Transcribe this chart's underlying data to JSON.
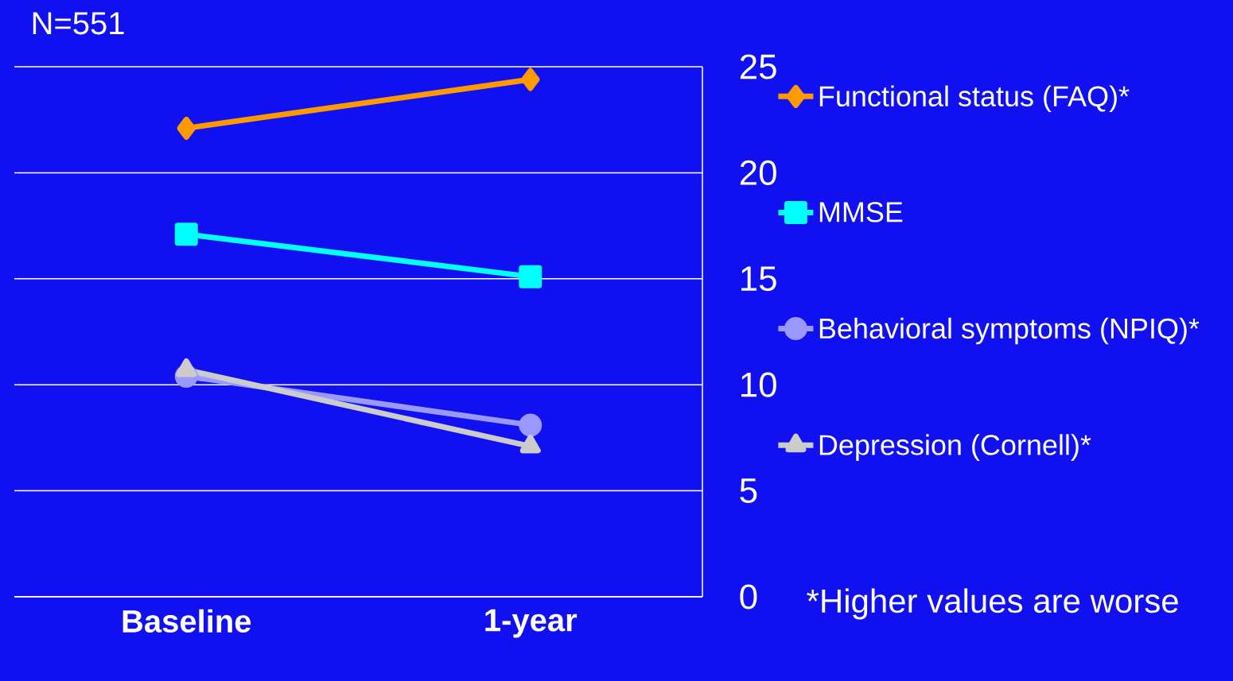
{
  "chart_data": {
    "type": "line",
    "categories": [
      "Baseline",
      "1-year"
    ],
    "series": [
      {
        "name": "Functional status (FAQ)*",
        "color": "#ff9900",
        "marker": "diamond",
        "values": [
          22.1,
          24.4
        ]
      },
      {
        "name": "MMSE",
        "color": "#00ffff",
        "marker": "square",
        "values": [
          17.1,
          15.1
        ]
      },
      {
        "name": "Behavioral symptoms (NPIQ)*",
        "color": "#9999ff",
        "marker": "circle",
        "values": [
          10.4,
          8.1
        ]
      },
      {
        "name": "Depression (Cornell)*",
        "color": "#cccccc",
        "marker": "triangle",
        "values": [
          10.7,
          7.1
        ]
      }
    ],
    "ylim": [
      0,
      25
    ],
    "yticks": [
      0,
      5,
      10,
      15,
      20,
      25
    ],
    "grid": "y",
    "legend": "right",
    "line_style": "solid",
    "annotations": [
      "N=551",
      "*Higher values are worse"
    ]
  }
}
